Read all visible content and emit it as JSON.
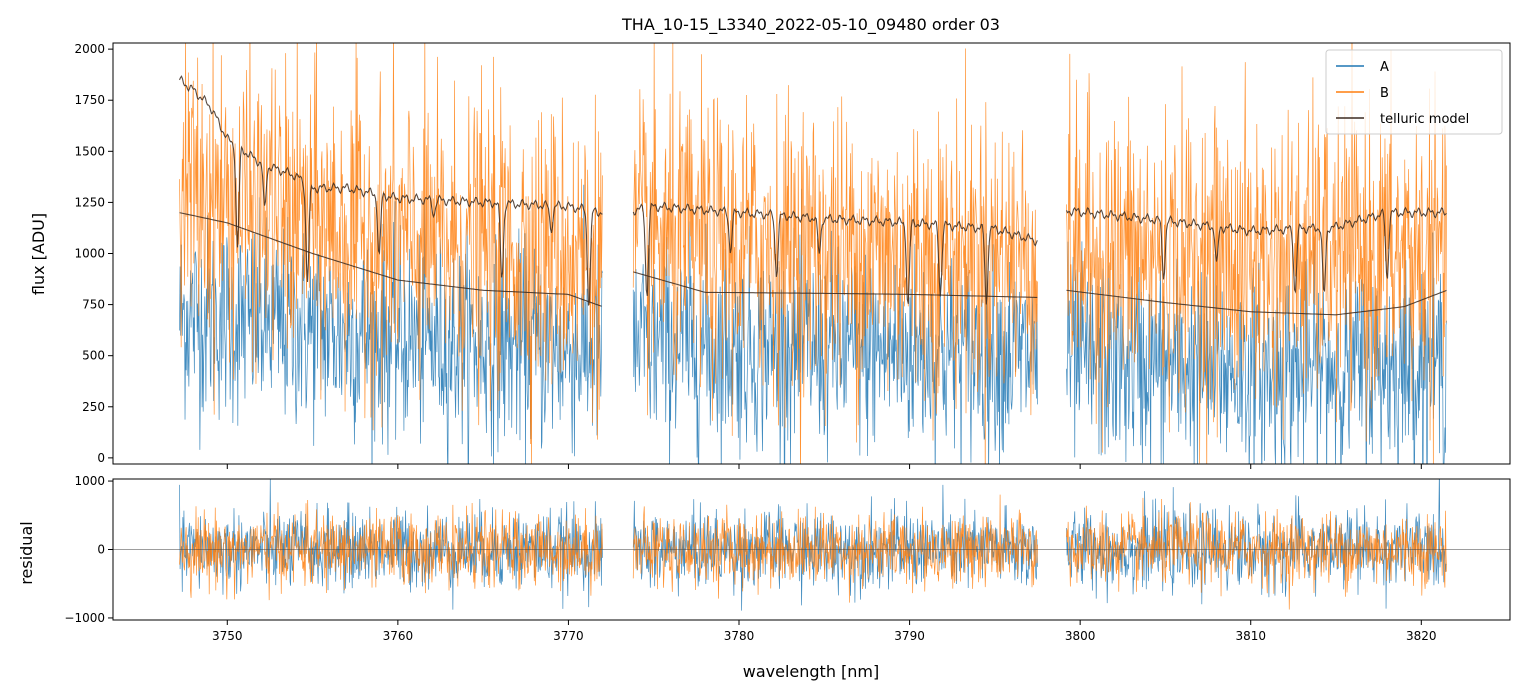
{
  "chart_data": [
    {
      "type": "line",
      "panel": "flux",
      "title": "THA_10-15_L3340_2022-05-10_09480  order 03",
      "xlabel": "",
      "ylabel": "flux [ADU]",
      "xlim": [
        3743.3,
        3825.2
      ],
      "ylim": [
        -30,
        2030
      ],
      "xticks": [
        3750,
        3760,
        3770,
        3780,
        3790,
        3800,
        3810,
        3820
      ],
      "yticks": [
        0,
        250,
        500,
        750,
        1000,
        1250,
        1500,
        1750,
        2000
      ],
      "yticklabels": [
        "0",
        "250",
        "500",
        "750",
        "1000",
        "1250",
        "1500",
        "1750",
        "2000"
      ],
      "segments": [
        [
          3747.2,
          3772.0
        ],
        [
          3773.8,
          3797.5
        ],
        [
          3799.2,
          3821.5
        ]
      ],
      "series": [
        {
          "name": "A",
          "color": "#1f77b4",
          "kind": "noisy",
          "center_points": [
            [
              3747.2,
              700
            ],
            [
              3760,
              580
            ],
            [
              3772.0,
              520
            ],
            [
              3773.8,
              560
            ],
            [
              3790,
              520
            ],
            [
              3797.5,
              500
            ],
            [
              3799.2,
              480
            ],
            [
              3810,
              420
            ],
            [
              3821.5,
              460
            ]
          ],
          "spread": 450
        },
        {
          "name": "B",
          "color": "#ff7f0e",
          "kind": "noisy",
          "center_points": [
            [
              3747.2,
              1300
            ],
            [
              3760,
              1050
            ],
            [
              3772.0,
              1000
            ],
            [
              3773.8,
              1050
            ],
            [
              3790,
              1000
            ],
            [
              3797.5,
              980
            ],
            [
              3799.2,
              1000
            ],
            [
              3810,
              960
            ],
            [
              3821.5,
              1000
            ]
          ],
          "spread": 650
        },
        {
          "name": "telluric model",
          "color": "#3b2a20",
          "kind": "model",
          "points": [
            [
              3747.2,
              1850
            ],
            [
              3748,
              1800
            ],
            [
              3749,
              1720
            ],
            [
              3750,
              1560
            ],
            [
              3751,
              1500
            ],
            [
              3752,
              1440
            ],
            [
              3753,
              1410
            ],
            [
              3754,
              1380
            ],
            [
              3755,
              1320
            ],
            [
              3757,
              1320
            ],
            [
              3760,
              1270
            ],
            [
              3765,
              1250
            ],
            [
              3770,
              1230
            ],
            [
              3772.0,
              1200
            ],
            [
              3773.8,
              1210
            ],
            [
              3775,
              1230
            ],
            [
              3780,
              1200
            ],
            [
              3785,
              1170
            ],
            [
              3790,
              1150
            ],
            [
              3795,
              1120
            ],
            [
              3797.5,
              1060
            ],
            [
              3799.2,
              1210
            ],
            [
              3805,
              1160
            ],
            [
              3810,
              1110
            ],
            [
              3815,
              1130
            ],
            [
              3818,
              1200
            ],
            [
              3821.5,
              1200
            ]
          ],
          "absorption_lines": [
            [
              3750.6,
              1030
            ],
            [
              3752.2,
              1230
            ],
            [
              3754.7,
              860
            ],
            [
              3758.9,
              990
            ],
            [
              3762.1,
              1180
            ],
            [
              3766.1,
              870
            ],
            [
              3769.0,
              1100
            ],
            [
              3771.2,
              730
            ],
            [
              3774.6,
              780
            ],
            [
              3779.5,
              1000
            ],
            [
              3782.2,
              880
            ],
            [
              3784.7,
              1000
            ],
            [
              3789.9,
              740
            ],
            [
              3791.8,
              790
            ],
            [
              3794.5,
              750
            ],
            [
              3804.9,
              870
            ],
            [
              3808.0,
              960
            ],
            [
              3812.6,
              800
            ],
            [
              3814.3,
              800
            ],
            [
              3818.0,
              870
            ]
          ]
        },
        {
          "name": "smooth continuum",
          "color": "#3b2a20",
          "kind": "continuum",
          "points": [
            [
              3747.2,
              1200
            ],
            [
              3750,
              1150
            ],
            [
              3755,
              1000
            ],
            [
              3760,
              870
            ],
            [
              3765,
              820
            ],
            [
              3770,
              800
            ],
            [
              3772.0,
              740
            ],
            [
              3773.8,
              910
            ],
            [
              3778,
              810
            ],
            [
              3785,
              805
            ],
            [
              3790,
              800
            ],
            [
              3797.5,
              785
            ],
            [
              3799.2,
              820
            ],
            [
              3805,
              760
            ],
            [
              3810,
              715
            ],
            [
              3815,
              700
            ],
            [
              3819,
              740
            ],
            [
              3821.5,
              820
            ]
          ]
        }
      ],
      "legend": {
        "placement": "top-right",
        "entries": [
          "A",
          "B",
          "telluric model"
        ]
      }
    },
    {
      "type": "line",
      "panel": "residual",
      "xlabel": "wavelength [nm]",
      "ylabel": "residual",
      "xlim": [
        3743.3,
        3825.2
      ],
      "ylim": [
        -1030,
        1030
      ],
      "xticks": [
        3750,
        3760,
        3770,
        3780,
        3790,
        3800,
        3810,
        3820
      ],
      "xticklabels": [
        "3750",
        "3760",
        "3770",
        "3780",
        "3790",
        "3800",
        "3810",
        "3820"
      ],
      "yticks": [
        -1000,
        0,
        1000
      ],
      "yticklabels": [
        "−1000",
        "0",
        "1000"
      ],
      "segments": [
        [
          3747.2,
          3772.0
        ],
        [
          3773.8,
          3797.5
        ],
        [
          3799.2,
          3821.5
        ]
      ],
      "series": [
        {
          "name": "A",
          "color": "#1f77b4",
          "kind": "noisy",
          "center": 0,
          "spread": 520
        },
        {
          "name": "B",
          "color": "#ff7f0e",
          "kind": "noisy",
          "center": 0,
          "spread": 480
        }
      ],
      "zero_line": 0
    }
  ]
}
